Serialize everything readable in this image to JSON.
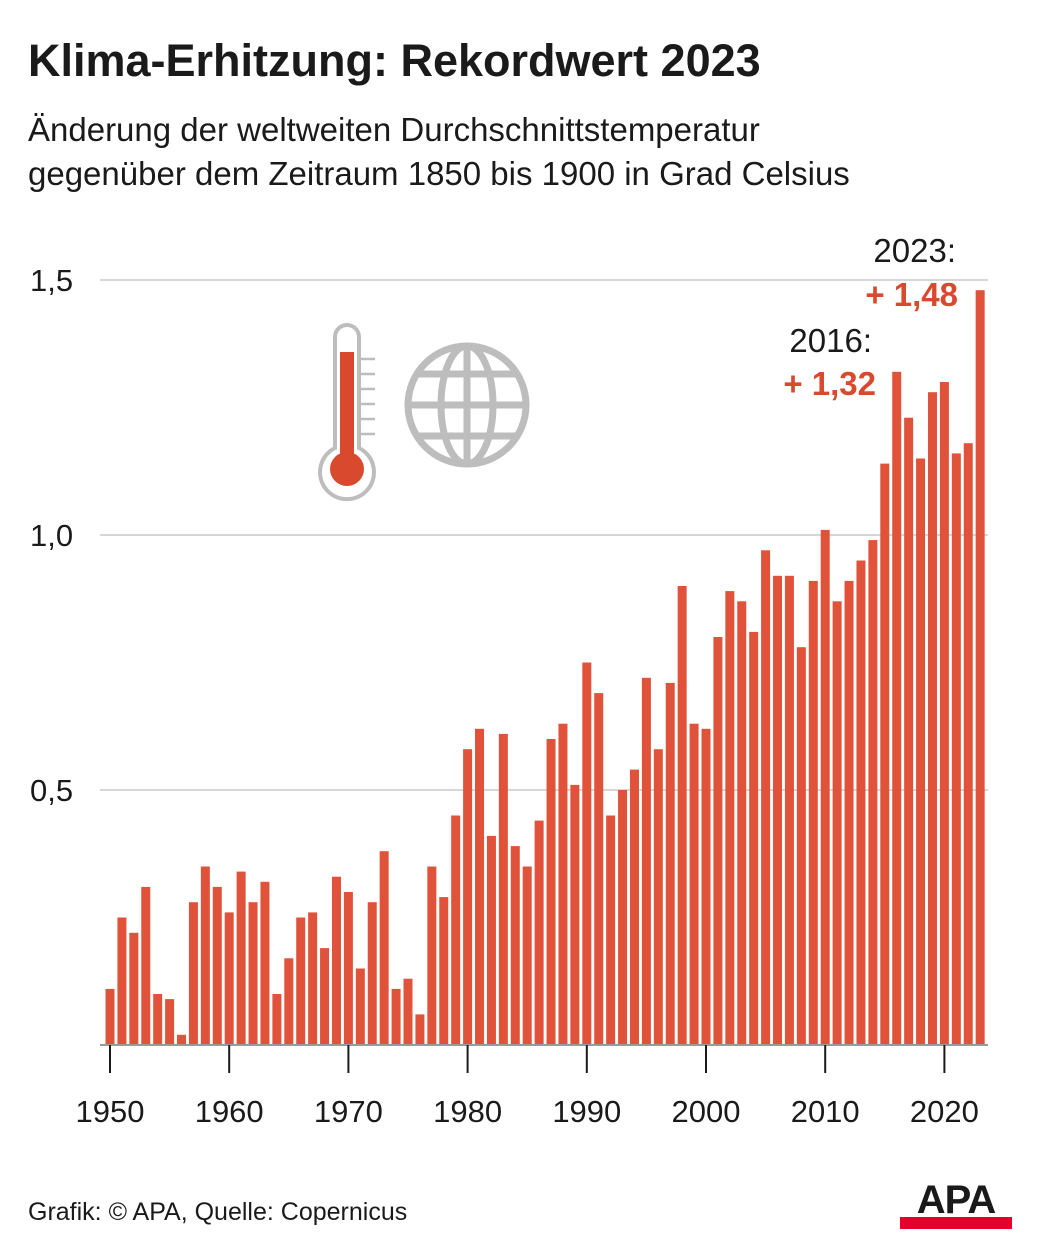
{
  "header": {
    "title": "Klima-Erhitzung: Rekordwert 2023",
    "subtitle_line1": "Änderung der weltweiten Durchschnittstemperatur",
    "subtitle_line2": "gegenüber dem Zeitraum 1850 bis 1900 in Grad Celsius"
  },
  "footer": {
    "credit": "Grafik: © APA, Quelle: Copernicus",
    "logo": "APA"
  },
  "icons": [
    "thermometer-icon",
    "globe-icon"
  ],
  "colors": {
    "bar": "#e0533a",
    "accent": "#d9492e",
    "grid": "#d6d6d6",
    "icon": "#bdbdbd",
    "logo_bar": "#e4002b"
  },
  "chart_data": {
    "type": "bar",
    "title": "Klima-Erhitzung: Rekordwert 2023",
    "subtitle": "Änderung der weltweiten Durchschnittstemperatur gegenüber dem Zeitraum 1850 bis 1900 in Grad Celsius",
    "xlabel": "",
    "ylabel": "",
    "ylim": [
      0,
      1.5
    ],
    "y_ticks": [
      {
        "value": 0.5,
        "label": "0,5"
      },
      {
        "value": 1.0,
        "label": "1,0"
      },
      {
        "value": 1.5,
        "label": "1,5"
      }
    ],
    "x_ticks": [
      1950,
      1960,
      1970,
      1980,
      1990,
      2000,
      2010,
      2020
    ],
    "grid": true,
    "categories": [
      1950,
      1951,
      1952,
      1953,
      1954,
      1955,
      1956,
      1957,
      1958,
      1959,
      1960,
      1961,
      1962,
      1963,
      1964,
      1965,
      1966,
      1967,
      1968,
      1969,
      1970,
      1971,
      1972,
      1973,
      1974,
      1975,
      1976,
      1977,
      1978,
      1979,
      1980,
      1981,
      1982,
      1983,
      1984,
      1985,
      1986,
      1987,
      1988,
      1989,
      1990,
      1991,
      1992,
      1993,
      1994,
      1995,
      1996,
      1997,
      1998,
      1999,
      2000,
      2001,
      2002,
      2003,
      2004,
      2005,
      2006,
      2007,
      2008,
      2009,
      2010,
      2011,
      2012,
      2013,
      2014,
      2015,
      2016,
      2017,
      2018,
      2019,
      2020,
      2021,
      2022,
      2023
    ],
    "values": [
      0.11,
      0.25,
      0.22,
      0.31,
      0.1,
      0.09,
      0.02,
      0.28,
      0.35,
      0.31,
      0.26,
      0.34,
      0.28,
      0.32,
      0.1,
      0.17,
      0.25,
      0.26,
      0.19,
      0.33,
      0.3,
      0.15,
      0.28,
      0.38,
      0.11,
      0.13,
      0.06,
      0.35,
      0.29,
      0.45,
      0.58,
      0.62,
      0.41,
      0.61,
      0.39,
      0.35,
      0.44,
      0.6,
      0.63,
      0.51,
      0.75,
      0.69,
      0.45,
      0.5,
      0.54,
      0.72,
      0.58,
      0.71,
      0.9,
      0.63,
      0.62,
      0.8,
      0.89,
      0.87,
      0.81,
      0.97,
      0.92,
      0.92,
      0.78,
      0.91,
      1.01,
      0.87,
      0.91,
      0.95,
      0.99,
      1.14,
      1.32,
      1.23,
      1.15,
      1.28,
      1.3,
      1.16,
      1.18,
      1.48
    ],
    "annotations": [
      {
        "year_label": "2016:",
        "value_label": "+ 1,32"
      },
      {
        "year_label": "2023:",
        "value_label": "+ 1,48"
      }
    ]
  }
}
